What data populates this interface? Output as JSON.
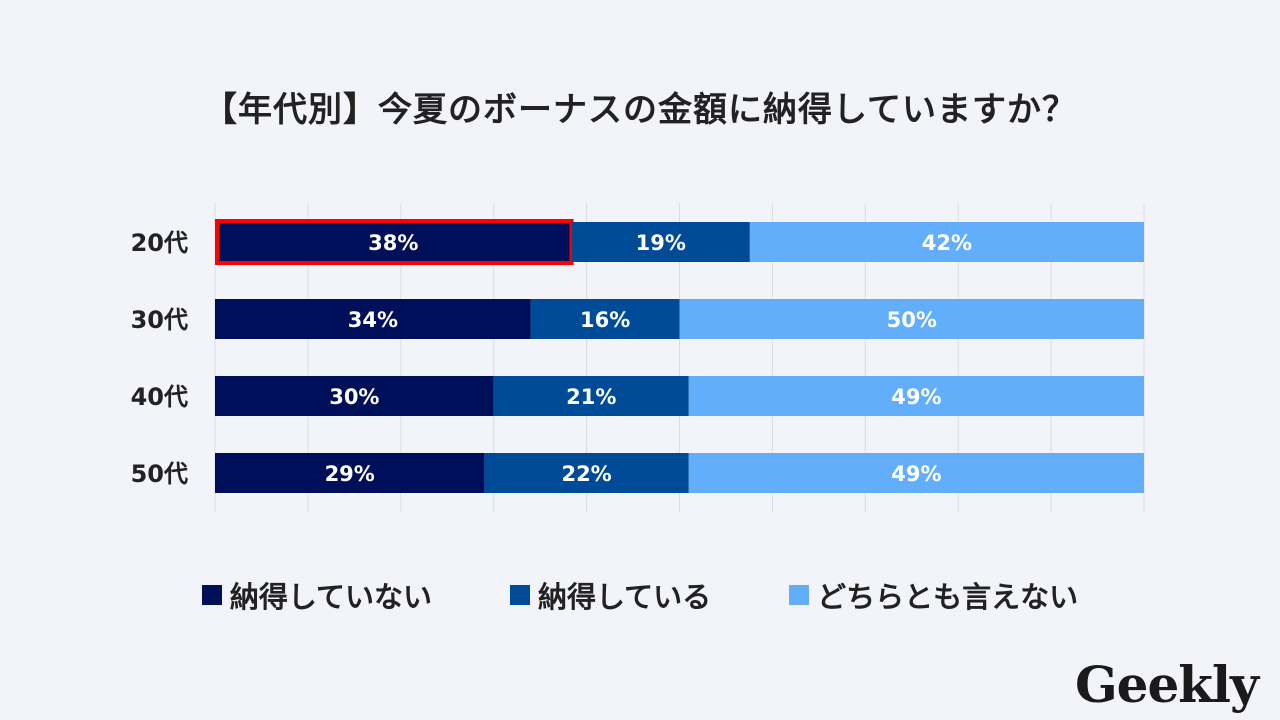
{
  "chart_data": {
    "type": "bar",
    "stacked": true,
    "orientation": "horizontal",
    "title": "【年代別】今夏のボーナスの金額に納得していますか？",
    "categories": [
      "20代",
      "30代",
      "40代",
      "50代"
    ],
    "series": [
      {
        "name": "納得していない",
        "color": "#000f5a",
        "values": [
          38,
          34,
          30,
          29
        ]
      },
      {
        "name": "納得している",
        "color": "#004b97",
        "values": [
          19,
          16,
          21,
          22
        ]
      },
      {
        "name": "どちらとも言えない",
        "color": "#62aefb",
        "values": [
          42,
          50,
          49,
          49
        ]
      }
    ],
    "value_suffix": "%",
    "xlim": [
      0,
      100
    ],
    "grid": true,
    "legend_position": "bottom",
    "highlight": {
      "category": "20代",
      "series": "納得していない",
      "color": "#ff0000"
    }
  },
  "logo_text": "Geekly"
}
